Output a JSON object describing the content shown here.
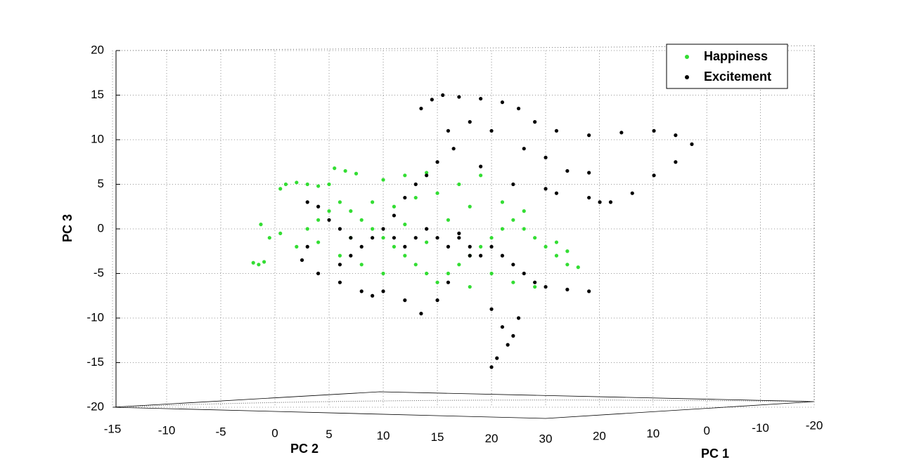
{
  "chart_data": {
    "type": "scatter",
    "ylabel": "PC 3",
    "xlabel": "PC 2",
    "x2label": "PC 1",
    "xlim": [
      -15,
      49.8
    ],
    "xticks": [
      -15,
      -10,
      -5,
      0,
      5,
      10,
      15,
      20
    ],
    "x2lim": [
      30,
      -20
    ],
    "x2ticks": [
      30,
      20,
      10,
      0,
      -10,
      -20
    ],
    "ylim": [
      -20,
      20
    ],
    "yticks": [
      -20,
      -15,
      -10,
      -5,
      0,
      5,
      10,
      15,
      20
    ],
    "grid": true,
    "legend": "upper right",
    "series": [
      {
        "name": "Happiness",
        "color": "#33dd33",
        "x": [
          1,
          2,
          3,
          4,
          5,
          0.5,
          5.5,
          6.5,
          7.5,
          -2,
          -1.5,
          -1,
          -1.3,
          -0.5,
          0.5,
          2,
          3,
          4,
          5,
          6,
          7,
          8,
          9,
          10,
          11,
          12,
          13,
          14,
          15,
          16,
          17,
          18,
          19,
          20,
          21,
          22,
          23,
          24,
          25,
          26,
          27,
          28,
          9,
          11,
          13,
          15,
          17,
          19,
          12,
          14,
          10,
          16,
          18,
          20,
          22,
          24,
          8,
          6,
          10,
          18,
          26,
          27,
          12,
          14,
          7,
          4,
          21,
          23
        ],
        "values": [
          5,
          5.2,
          5,
          4.8,
          5,
          4.5,
          6.8,
          6.5,
          6.2,
          -3.8,
          -4,
          -3.7,
          0.5,
          -1,
          -0.5,
          -2,
          0,
          1,
          2,
          3,
          2,
          1,
          0,
          -1,
          -2,
          -3,
          -4,
          -5,
          -6,
          -5,
          -4,
          -3,
          -2,
          -1,
          0,
          1,
          2,
          -1,
          -2,
          -3,
          -4,
          -4.3,
          3,
          2.5,
          3.5,
          4,
          5,
          6,
          6,
          6.3,
          5.5,
          1,
          2.5,
          -5,
          -6,
          -6.5,
          -4,
          -3,
          -5,
          -6.5,
          -1.5,
          -2.5,
          0.5,
          -1.5,
          -1,
          -1.5,
          3,
          0
        ]
      },
      {
        "name": "Excitement",
        "color": "#000000",
        "x": [
          3,
          4,
          5,
          6,
          7,
          8,
          9,
          10,
          11,
          12,
          13,
          14,
          15,
          16,
          17,
          18,
          19,
          20,
          21,
          22,
          23,
          24,
          25,
          27,
          29,
          3,
          2.5,
          4,
          6,
          8,
          9,
          10,
          12,
          13.5,
          15,
          16,
          20,
          21,
          21.5,
          20.5,
          20,
          22,
          22.5,
          13.5,
          14.5,
          15.5,
          17,
          19,
          21,
          22.5,
          24,
          26,
          29,
          32,
          35,
          37,
          38.5,
          37,
          35,
          33,
          31,
          29,
          26,
          22,
          19,
          16.5,
          16,
          18,
          20,
          23,
          25,
          27,
          29,
          30,
          25,
          17,
          18,
          11,
          12,
          13,
          14,
          15,
          6,
          7
        ],
        "values": [
          3,
          2.5,
          1,
          0,
          -1,
          -2,
          -1,
          0,
          -1,
          -2,
          -1,
          0,
          -1,
          -2,
          -1,
          -2,
          -3,
          -2,
          -3,
          -4,
          -5,
          -6,
          -6.5,
          -6.8,
          -7,
          -2,
          -3.5,
          -5,
          -6,
          -7,
          -7.5,
          -7,
          -8,
          -9.5,
          -8,
          -6,
          -9,
          -11,
          -13,
          -14.5,
          -15.5,
          -12,
          -10,
          13.5,
          14.5,
          15,
          14.8,
          14.6,
          14.2,
          13.5,
          12,
          11,
          10.5,
          10.8,
          11,
          10.5,
          9.5,
          7.5,
          6,
          4,
          3,
          3.5,
          4,
          5,
          7,
          9,
          11,
          12,
          11,
          9,
          8,
          6.5,
          6.3,
          3,
          4.5,
          -0.5,
          -3,
          1.5,
          3.5,
          5,
          6,
          7.5,
          -4,
          -3
        ]
      }
    ]
  }
}
